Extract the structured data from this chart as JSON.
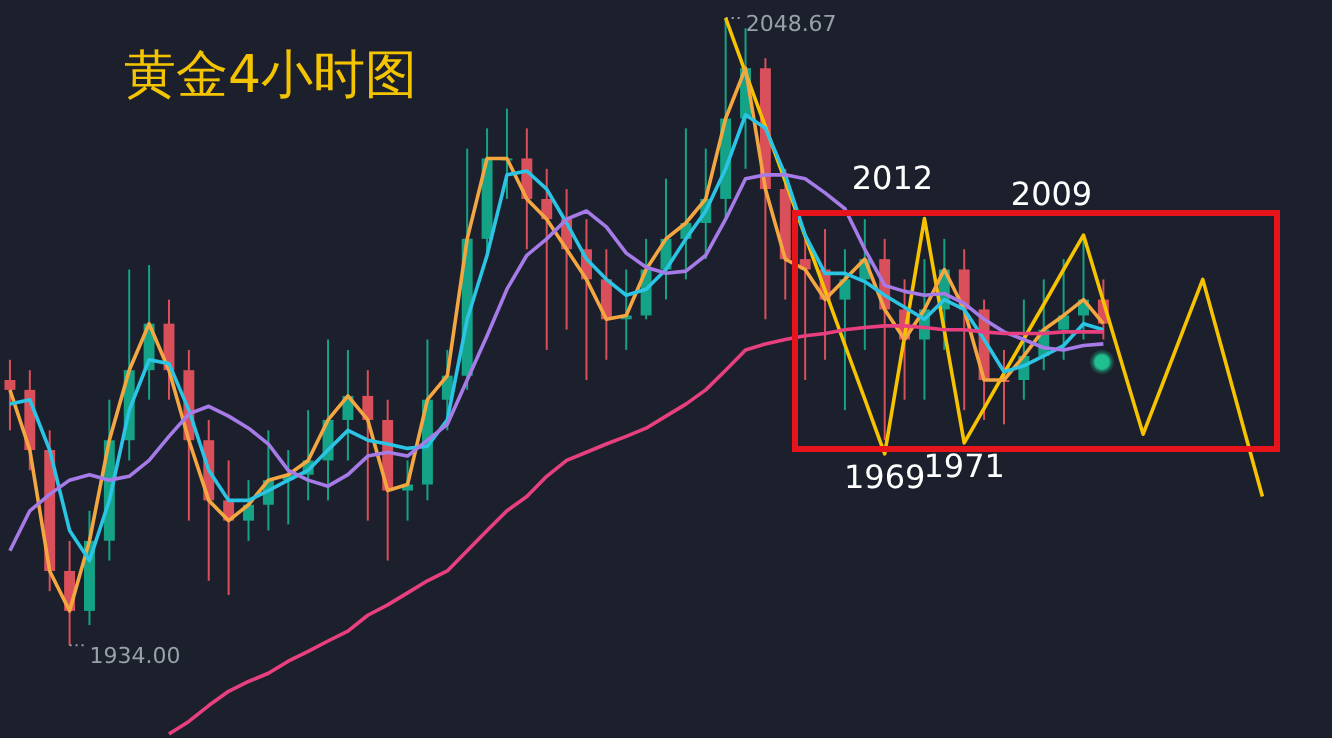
{
  "chart_data": {
    "type": "candlestick",
    "title": "黄金4小时图",
    "tick_labels": false,
    "categories": [
      null,
      null,
      null,
      null,
      null,
      null,
      null,
      null,
      null,
      null,
      null,
      null,
      null,
      null,
      null,
      null,
      null,
      null,
      null,
      null,
      null,
      null,
      null,
      null,
      null,
      null,
      null,
      null,
      null,
      null,
      null,
      null,
      null,
      null,
      null,
      null,
      null,
      null,
      null,
      null,
      null,
      null,
      null,
      null,
      null,
      null,
      null,
      null,
      null,
      null,
      null,
      null,
      null,
      null,
      null,
      null,
      null,
      null,
      null,
      null,
      null,
      null,
      null,
      null,
      null,
      null,
      null
    ],
    "ohlc": [
      [
        1982.5,
        1986.2,
        1973.3,
        1980.7
      ],
      [
        1980.7,
        1984.3,
        1966.0,
        1969.7
      ],
      [
        1969.7,
        1973.3,
        1943.9,
        1947.6
      ],
      [
        1947.6,
        1953.1,
        1934.0,
        1940.3
      ],
      [
        1940.3,
        1958.6,
        1937.7,
        1953.1
      ],
      [
        1953.1,
        1978.9,
        1949.5,
        1971.5
      ],
      [
        1971.5,
        2002.7,
        1967.8,
        1984.3
      ],
      [
        1984.3,
        2003.5,
        1978.9,
        1992.8
      ],
      [
        1992.8,
        1997.2,
        1978.9,
        1984.3
      ],
      [
        1984.3,
        1988.0,
        1956.8,
        1971.5
      ],
      [
        1971.5,
        1975.2,
        1945.8,
        1960.5
      ],
      [
        1960.5,
        1967.8,
        1943.2,
        1956.8
      ],
      [
        1956.8,
        1964.2,
        1953.1,
        1959.7
      ],
      [
        1959.7,
        1973.3,
        1955.0,
        1964.2
      ],
      [
        1964.2,
        1969.7,
        1956.1,
        1965.2
      ],
      [
        1965.2,
        1977.0,
        1960.5,
        1967.8
      ],
      [
        1967.8,
        1989.9,
        1960.5,
        1975.2
      ],
      [
        1975.2,
        1988.0,
        1967.8,
        1979.6
      ],
      [
        1979.6,
        1984.3,
        1956.8,
        1975.2
      ],
      [
        1975.2,
        1978.9,
        1949.5,
        1962.3
      ],
      [
        1962.3,
        1967.8,
        1956.8,
        1963.4
      ],
      [
        1963.4,
        1989.9,
        1960.5,
        1978.9
      ],
      [
        1978.9,
        1988.0,
        1973.3,
        1983.3
      ],
      [
        1983.3,
        2024.8,
        1980.7,
        2008.3
      ],
      [
        2008.3,
        2028.5,
        2004.6,
        2023.0
      ],
      [
        2023.0,
        2032.1,
        2015.6,
        2023.0
      ],
      [
        2023.0,
        2028.5,
        2006.4,
        2015.6
      ],
      [
        2015.6,
        2021.1,
        1988.0,
        2011.9
      ],
      [
        2011.9,
        2017.4,
        1991.7,
        2006.4
      ],
      [
        2006.4,
        2011.9,
        1982.5,
        2000.9
      ],
      [
        2000.9,
        2006.4,
        1986.2,
        1993.6
      ],
      [
        1993.6,
        2002.7,
        1988.0,
        1994.3
      ],
      [
        1994.3,
        2008.3,
        1993.6,
        2002.7
      ],
      [
        2002.7,
        2019.3,
        1997.2,
        2008.3
      ],
      [
        2008.3,
        2028.5,
        2000.9,
        2011.2
      ],
      [
        2011.2,
        2024.8,
        2004.6,
        2015.6
      ],
      [
        2015.6,
        2048.67,
        2011.9,
        2030.3
      ],
      [
        2030.3,
        2046.8,
        2021.1,
        2039.5
      ],
      [
        2039.5,
        2041.3,
        1993.6,
        2017.4
      ],
      [
        2017.4,
        2021.1,
        1997.2,
        2004.6
      ],
      [
        2004.6,
        2008.3,
        1982.5,
        2002.7
      ],
      [
        2002.7,
        2010.1,
        1986.2,
        1997.2
      ],
      [
        1997.2,
        2006.4,
        1977.0,
        2000.9
      ],
      [
        2000.9,
        2011.9,
        1988.0,
        2004.6
      ],
      [
        2004.6,
        2008.3,
        1971.5,
        1995.4
      ],
      [
        1995.4,
        2000.9,
        1978.9,
        1989.9
      ],
      [
        1989.9,
        2004.6,
        1978.9,
        1995.4
      ],
      [
        1995.4,
        2008.3,
        1988.0,
        2002.7
      ],
      [
        2002.7,
        2006.4,
        1977.0,
        1995.4
      ],
      [
        1995.4,
        1997.2,
        1975.2,
        1982.5
      ],
      [
        1982.5,
        1988.0,
        1974.4,
        1982.5
      ],
      [
        1982.5,
        1997.2,
        1978.9,
        1986.9
      ],
      [
        1986.9,
        2000.9,
        1984.3,
        1991.7
      ],
      [
        1991.7,
        2004.6,
        1986.2,
        1994.3
      ],
      [
        1994.3,
        2008.3,
        1989.9,
        1997.2
      ],
      [
        1997.2,
        2000.9,
        1989.9,
        1992.8
      ],
      null,
      null,
      null,
      null,
      null,
      null,
      null,
      null,
      null,
      null,
      null
    ],
    "colors": [
      "#d9505a",
      "#d9505a",
      "#d9505a",
      "#d9505a",
      "#14a386",
      "#14a386",
      "#14a386",
      "#14a386",
      "#d9505a",
      "#d9505a",
      "#d9505a",
      "#d9505a",
      "#14a386",
      "#14a386",
      "#14a386",
      "#14a386",
      "#14a386",
      "#14a386",
      "#d9505a",
      "#d9505a",
      "#14a386",
      "#14a386",
      "#14a386",
      "#14a386",
      "#14a386",
      "#14a386",
      "#d9505a",
      "#d9505a",
      "#d9505a",
      "#d9505a",
      "#d9505a",
      "#14a386",
      "#14a386",
      "#14a386",
      "#14a386",
      "#14a386",
      "#14a386",
      "#14a386",
      "#d9505a",
      "#d9505a",
      "#d9505a",
      "#d9505a",
      "#14a386",
      "#14a386",
      "#d9505a",
      "#d9505a",
      "#14a386",
      "#14a386",
      "#d9505a",
      "#d9505a",
      "#d9505a",
      "#14a386",
      "#14a386",
      "#14a386",
      "#14a386",
      "#d9505a",
      null,
      null,
      null,
      null,
      null,
      null,
      null,
      null,
      null,
      null,
      null
    ],
    "value_labels": [
      null,
      null,
      null,
      "1934.00",
      null,
      null,
      null,
      null,
      null,
      null,
      null,
      null,
      null,
      null,
      null,
      null,
      null,
      null,
      null,
      null,
      null,
      null,
      null,
      null,
      null,
      null,
      null,
      null,
      null,
      null,
      null,
      null,
      null,
      null,
      null,
      null,
      "2048.67",
      null,
      null,
      null,
      null,
      null,
      null,
      null,
      null,
      null,
      null,
      null,
      null,
      null,
      null,
      null,
      null,
      null,
      null,
      null,
      null,
      null,
      null,
      null,
      null,
      null,
      null,
      null,
      null,
      null,
      null
    ],
    "series": [
      {
        "type": "line",
        "color": "#e8407f",
        "values": [
          null,
          null,
          null,
          null,
          null,
          null,
          null,
          null,
          1917.8,
          1920.1,
          1923.0,
          1925.6,
          1927.4,
          1928.9,
          1931.1,
          1932.9,
          1934.8,
          1936.6,
          1939.5,
          1941.4,
          1943.6,
          1945.8,
          1947.6,
          1951.3,
          1955.0,
          1958.6,
          1961.2,
          1964.9,
          1967.8,
          1969.3,
          1970.8,
          1972.2,
          1973.7,
          1975.9,
          1978.1,
          1980.7,
          1984.3,
          1988.0,
          1989.1,
          1989.9,
          1990.6,
          1991.0,
          1991.7,
          1992.1,
          1992.4,
          1992.4,
          1992.1,
          1991.7,
          1991.7,
          1991.3,
          1991.0,
          1991.0,
          1991.0,
          1991.3,
          1991.3,
          1991.3,
          null,
          null,
          null,
          null,
          null,
          null,
          null,
          null,
          null,
          null,
          null
        ]
      },
      {
        "type": "line",
        "color": "#a67be8",
        "values": [
          1951.3,
          1958.6,
          1961.6,
          1964.2,
          1965.2,
          1964.2,
          1964.9,
          1967.8,
          1972.2,
          1976.3,
          1977.7,
          1975.9,
          1973.7,
          1970.8,
          1966.0,
          1964.2,
          1963.1,
          1965.2,
          1968.6,
          1969.3,
          1968.6,
          1971.5,
          1974.4,
          1982.5,
          1990.6,
          1999.1,
          2005.3,
          2008.3,
          2011.9,
          2013.4,
          2010.5,
          2005.7,
          2003.1,
          2002.0,
          2002.4,
          2005.3,
          2011.9,
          2019.3,
          2020.0,
          2020.0,
          2019.3,
          2016.7,
          2013.8,
          2006.4,
          1999.8,
          1998.7,
          1998.0,
          1998.3,
          1996.5,
          1993.6,
          1991.3,
          1989.9,
          1988.4,
          1988.0,
          1988.8,
          1989.1,
          null,
          null,
          null,
          null,
          null,
          null,
          null,
          null,
          null,
          null,
          null
        ]
      },
      {
        "type": "line",
        "color": "#2bc4e4",
        "values": [
          1978.1,
          1978.9,
          1969.7,
          1955.0,
          1949.5,
          1960.5,
          1977.0,
          1986.2,
          1985.5,
          1977.0,
          1966.0,
          1960.5,
          1960.5,
          1962.3,
          1964.2,
          1966.0,
          1969.7,
          1973.3,
          1971.5,
          1970.8,
          1970.0,
          1970.4,
          1975.2,
          1993.6,
          2005.3,
          2020.0,
          2020.7,
          2017.4,
          2011.2,
          2004.6,
          2000.9,
          1998.0,
          1999.1,
          2002.7,
          2008.3,
          2013.4,
          2021.1,
          2031.0,
          2028.5,
          2020.0,
          2009.0,
          2002.0,
          2002.0,
          2000.5,
          1998.0,
          1995.8,
          1993.6,
          1997.2,
          1995.4,
          1989.9,
          1984.0,
          1985.1,
          1986.9,
          1988.8,
          1992.8,
          1991.7,
          null,
          null,
          null,
          null,
          null,
          null,
          null,
          null,
          null,
          null,
          null
        ]
      },
      {
        "type": "line",
        "color": "#f4a640",
        "values": [
          1980.7,
          1969.7,
          1947.6,
          1940.3,
          1953.1,
          1971.5,
          1984.3,
          1992.8,
          1984.3,
          1971.5,
          1960.5,
          1956.8,
          1959.7,
          1964.2,
          1965.2,
          1967.8,
          1975.2,
          1979.6,
          1975.2,
          1962.3,
          1963.4,
          1978.9,
          1983.3,
          2008.3,
          2023.0,
          2023.0,
          2015.6,
          2011.9,
          2006.4,
          2000.9,
          1993.6,
          1994.3,
          2002.7,
          2008.3,
          2011.2,
          2015.6,
          2030.3,
          2039.5,
          2017.4,
          2004.6,
          2002.7,
          1997.2,
          2000.9,
          2004.6,
          1995.4,
          1989.9,
          1995.4,
          2002.7,
          1995.4,
          1982.5,
          1982.5,
          1986.9,
          1991.7,
          1994.3,
          1997.2,
          1992.8,
          null,
          null,
          null,
          null,
          null,
          null,
          null,
          null,
          null,
          null,
          null
        ]
      },
      {
        "type": "line",
        "color": "#f7c300",
        "values": [
          null,
          null,
          null,
          null,
          null,
          null,
          null,
          null,
          null,
          null,
          null,
          null,
          null,
          null,
          null,
          null,
          null,
          null,
          null,
          null,
          null,
          null,
          null,
          null,
          null,
          null,
          null,
          null,
          null,
          null,
          null,
          null,
          null,
          null,
          null,
          null,
          2048.67,
          2038.7,
          2028.8,
          2018.8,
          2008.8,
          1998.9,
          1988.9,
          1979.0,
          1969,
          1990.5,
          2012,
          1991.5,
          1971,
          1977.3,
          1983.7,
          1990.0,
          1996.3,
          2002.7,
          2009,
          1996.9,
          1984.7,
          1972.6,
          1982.0,
          1991.5,
          2000.9,
          1987.7,
          1974.4,
          1961.2,
          null,
          null,
          null
        ],
        "value_labels": [
          null,
          null,
          null,
          null,
          null,
          null,
          null,
          null,
          null,
          null,
          null,
          null,
          null,
          null,
          null,
          null,
          null,
          null,
          null,
          null,
          null,
          null,
          null,
          null,
          null,
          null,
          null,
          null,
          null,
          null,
          null,
          null,
          null,
          null,
          null,
          null,
          null,
          null,
          null,
          null,
          null,
          null,
          null,
          null,
          "1969",
          null,
          "2012",
          null,
          "1971",
          null,
          null,
          null,
          null,
          null,
          "2009",
          null,
          null,
          null,
          null,
          null,
          null,
          null,
          null,
          null,
          null,
          null,
          null
        ]
      }
    ]
  }
}
